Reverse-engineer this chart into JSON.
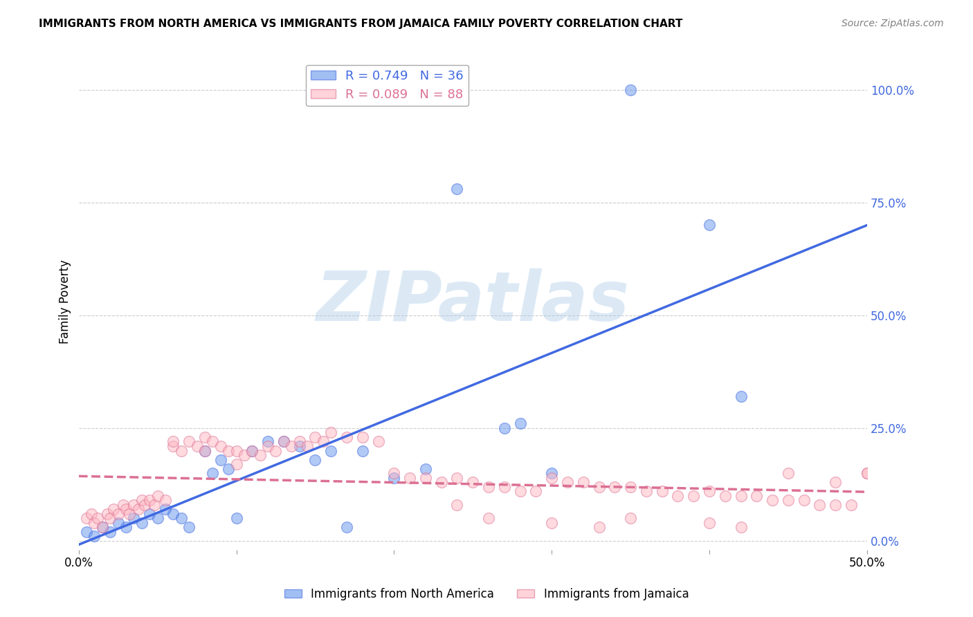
{
  "title": "IMMIGRANTS FROM NORTH AMERICA VS IMMIGRANTS FROM JAMAICA FAMILY POVERTY CORRELATION CHART",
  "source": "Source: ZipAtlas.com",
  "ylabel": "Family Poverty",
  "legend_blue_label": "Immigrants from North America",
  "legend_pink_label": "Immigrants from Jamaica",
  "blue_R": 0.749,
  "blue_N": 36,
  "pink_R": 0.089,
  "pink_N": 88,
  "xlim": [
    0.0,
    0.5
  ],
  "ylim": [
    -0.02,
    1.08
  ],
  "yticks_right": [
    0.0,
    0.25,
    0.5,
    0.75,
    1.0
  ],
  "ytick_labels_right": [
    "0.0%",
    "25.0%",
    "50.0%",
    "75.0%",
    "100.0%"
  ],
  "watermark": "ZIPatlas",
  "background_color": "#ffffff",
  "blue_color": "#6495ED",
  "pink_color": "#FFB6C1",
  "blue_line_color": "#4169E1",
  "pink_line_color": "#DB7093",
  "grid_color": "#cccccc",
  "blue_scatter_x": [
    0.005,
    0.01,
    0.015,
    0.02,
    0.025,
    0.03,
    0.035,
    0.04,
    0.045,
    0.05,
    0.055,
    0.06,
    0.065,
    0.07,
    0.08,
    0.085,
    0.09,
    0.095,
    0.1,
    0.11,
    0.12,
    0.13,
    0.14,
    0.15,
    0.16,
    0.17,
    0.18,
    0.2,
    0.22,
    0.24,
    0.27,
    0.28,
    0.3,
    0.35,
    0.4,
    0.42
  ],
  "blue_scatter_y": [
    0.02,
    0.01,
    0.03,
    0.02,
    0.04,
    0.03,
    0.05,
    0.04,
    0.06,
    0.05,
    0.07,
    0.06,
    0.05,
    0.03,
    0.2,
    0.15,
    0.18,
    0.16,
    0.05,
    0.2,
    0.22,
    0.22,
    0.21,
    0.18,
    0.2,
    0.03,
    0.2,
    0.14,
    0.16,
    0.78,
    0.25,
    0.26,
    0.15,
    1.0,
    0.7,
    0.32
  ],
  "pink_scatter_x": [
    0.005,
    0.008,
    0.01,
    0.012,
    0.015,
    0.018,
    0.02,
    0.022,
    0.025,
    0.028,
    0.03,
    0.032,
    0.035,
    0.038,
    0.04,
    0.042,
    0.045,
    0.048,
    0.05,
    0.055,
    0.06,
    0.065,
    0.07,
    0.075,
    0.08,
    0.085,
    0.09,
    0.095,
    0.1,
    0.105,
    0.11,
    0.115,
    0.12,
    0.125,
    0.13,
    0.135,
    0.14,
    0.145,
    0.15,
    0.155,
    0.16,
    0.17,
    0.18,
    0.19,
    0.2,
    0.21,
    0.22,
    0.23,
    0.24,
    0.25,
    0.26,
    0.27,
    0.28,
    0.29,
    0.3,
    0.31,
    0.32,
    0.33,
    0.34,
    0.35,
    0.36,
    0.37,
    0.38,
    0.39,
    0.4,
    0.41,
    0.42,
    0.43,
    0.44,
    0.45,
    0.46,
    0.47,
    0.48,
    0.49,
    0.5,
    0.24,
    0.26,
    0.3,
    0.33,
    0.35,
    0.4,
    0.42,
    0.45,
    0.48,
    0.5,
    0.06,
    0.08,
    0.1
  ],
  "pink_scatter_y": [
    0.05,
    0.06,
    0.04,
    0.05,
    0.03,
    0.06,
    0.05,
    0.07,
    0.06,
    0.08,
    0.07,
    0.06,
    0.08,
    0.07,
    0.09,
    0.08,
    0.09,
    0.08,
    0.1,
    0.09,
    0.21,
    0.2,
    0.22,
    0.21,
    0.23,
    0.22,
    0.21,
    0.2,
    0.2,
    0.19,
    0.2,
    0.19,
    0.21,
    0.2,
    0.22,
    0.21,
    0.22,
    0.21,
    0.23,
    0.22,
    0.24,
    0.23,
    0.23,
    0.22,
    0.15,
    0.14,
    0.14,
    0.13,
    0.14,
    0.13,
    0.12,
    0.12,
    0.11,
    0.11,
    0.14,
    0.13,
    0.13,
    0.12,
    0.12,
    0.12,
    0.11,
    0.11,
    0.1,
    0.1,
    0.11,
    0.1,
    0.1,
    0.1,
    0.09,
    0.09,
    0.09,
    0.08,
    0.08,
    0.08,
    0.15,
    0.08,
    0.05,
    0.04,
    0.03,
    0.05,
    0.04,
    0.03,
    0.15,
    0.13,
    0.15,
    0.22,
    0.2,
    0.17
  ]
}
